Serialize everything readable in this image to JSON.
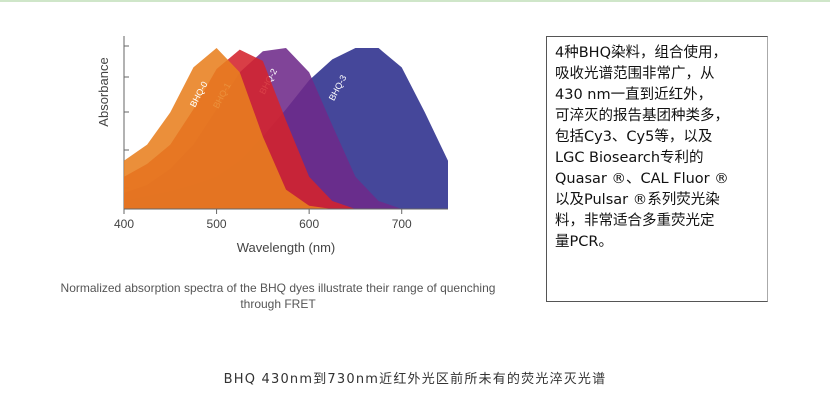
{
  "chart_data": {
    "type": "area",
    "xlabel": "Wavelength (nm)",
    "ylabel": "Absorbance",
    "caption": "Normalized absorption spectra of the BHQ dyes illustrate their range of quenching through FRET",
    "x": [
      400,
      425,
      450,
      475,
      500,
      525,
      550,
      575,
      600,
      625,
      650,
      675,
      700,
      725,
      750
    ],
    "series": [
      {
        "name": "BHQ-3",
        "color": "#2b2d8c",
        "values": [
          0.05,
          0.08,
          0.11,
          0.15,
          0.2,
          0.3,
          0.45,
          0.62,
          0.8,
          0.93,
          1.0,
          1.0,
          0.88,
          0.6,
          0.3
        ]
      },
      {
        "name": "BHQ-2",
        "color": "#6e2a8a",
        "values": [
          0.1,
          0.15,
          0.25,
          0.4,
          0.62,
          0.85,
          0.98,
          1.0,
          0.85,
          0.52,
          0.2,
          0.05,
          0,
          0,
          0
        ]
      },
      {
        "name": "BHQ-1",
        "color": "#d4232c",
        "values": [
          0.2,
          0.28,
          0.4,
          0.62,
          0.87,
          0.99,
          0.92,
          0.55,
          0.2,
          0.05,
          0,
          0,
          0,
          0,
          0
        ]
      },
      {
        "name": "BHQ-0",
        "color": "#e8801f",
        "values": [
          0.3,
          0.4,
          0.6,
          0.88,
          1.0,
          0.85,
          0.45,
          0.12,
          0.02,
          0,
          0,
          0,
          0,
          0,
          0
        ]
      }
    ],
    "xlim": [
      400,
      750
    ],
    "ylim": [
      0,
      1.05
    ],
    "xticks": [
      400,
      500,
      600,
      700
    ]
  },
  "note": {
    "lines": [
      "4种BHQ染料，组合使用，",
      "吸收光谱范围非常广，从",
      "430 nm一直到近红外，",
      "可淬灭的报告基团种类多，",
      "包括Cy3、Cy5等，以及",
      "LGC Biosearch专利的",
      "Quasar ®、CAL Fluor ®",
      "以及Pulsar ®系列荧光染",
      "料，非常适合多重荧光定",
      "量PCR。"
    ]
  },
  "caption": "BHQ 430nm到730nm近红外光区前所未有的荧光淬灭光谱"
}
